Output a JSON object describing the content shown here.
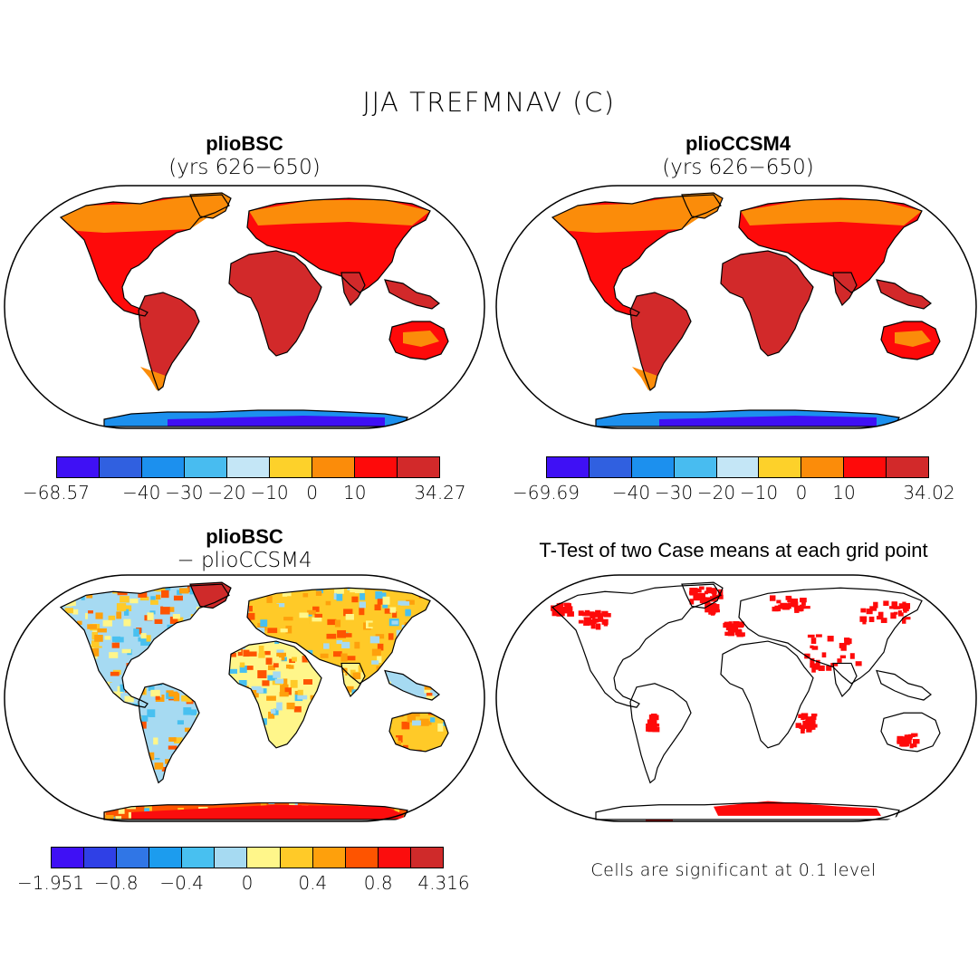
{
  "figure": {
    "title": "JJA TREFMNAV (C)"
  },
  "panels": [
    {
      "title": "plioBSC",
      "subtitle": "(yrs 626−650)"
    },
    {
      "title": "plioCCSM4",
      "subtitle": "(yrs 626−650)"
    },
    {
      "title": "plioBSC",
      "subtitle": "− plioCCSM4"
    },
    {
      "title": "T-Test of two Case means at each grid point",
      "subtitle": ""
    }
  ],
  "colorbars": [
    {
      "colors": [
        "#3f10f5",
        "#3060e0",
        "#1c90ee",
        "#48bcf0",
        "#c4e6f6",
        "#fdd12a",
        "#fb8c0a",
        "#fe0a0a",
        "#d2292a"
      ],
      "labels": [
        "−68.57",
        "−40",
        "−30",
        "−20",
        "−10",
        "0",
        "10",
        "34.27"
      ],
      "label_edges": [
        0,
        2,
        3,
        4,
        5,
        6,
        7,
        9
      ]
    },
    {
      "colors": [
        "#3f10f5",
        "#3060e0",
        "#1c90ee",
        "#48bcf0",
        "#c4e6f6",
        "#fdd12a",
        "#fb8c0a",
        "#fe0a0a",
        "#d2292a"
      ],
      "labels": [
        "−69.69",
        "−40",
        "−30",
        "−20",
        "−10",
        "0",
        "10",
        "34.02"
      ],
      "label_edges": [
        0,
        2,
        3,
        4,
        5,
        6,
        7,
        9
      ]
    },
    {
      "colors": [
        "#3f10f5",
        "#2f40e6",
        "#3076e6",
        "#1c9cee",
        "#48c0f0",
        "#a6daf2",
        "#fff68a",
        "#ffca28",
        "#fea00c",
        "#fe5400",
        "#fb0d0d",
        "#cf2a2a"
      ],
      "labels": [
        "−1.951",
        "−0.8",
        "−0.4",
        "0",
        "0.4",
        "0.8",
        "4.316"
      ],
      "label_edges": [
        0,
        2,
        4,
        6,
        8,
        10,
        12
      ]
    }
  ],
  "footnote": "Cells are significant at 0.1 level",
  "colors": {
    "land_warm": "#d2292a",
    "land_hot": "#fe0a0a",
    "land_orange": "#fb8c0a",
    "ice_cold": "#1c90ee",
    "ice_deep": "#3f10f5",
    "significance": "#fe0a0a"
  }
}
